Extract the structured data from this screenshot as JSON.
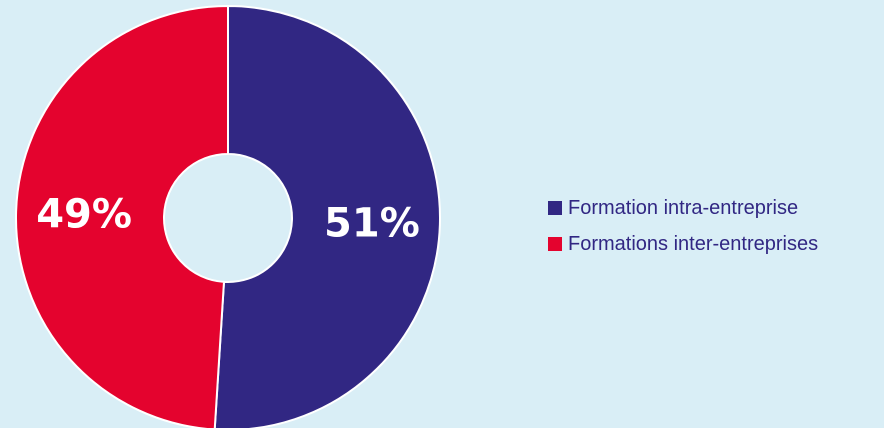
{
  "chart_data": {
    "type": "pie",
    "categories": [
      "Formation intra-entreprise",
      "Formations inter-entreprises"
    ],
    "values": [
      51,
      49
    ],
    "data_labels": [
      "51%",
      "49%"
    ],
    "colors": [
      "#312783",
      "#e4032e"
    ],
    "background": "#d9eef6",
    "donut": true,
    "legend": {
      "position": "right",
      "entries": [
        "Formation intra-entreprise",
        "Formations inter-entreprises"
      ]
    }
  }
}
